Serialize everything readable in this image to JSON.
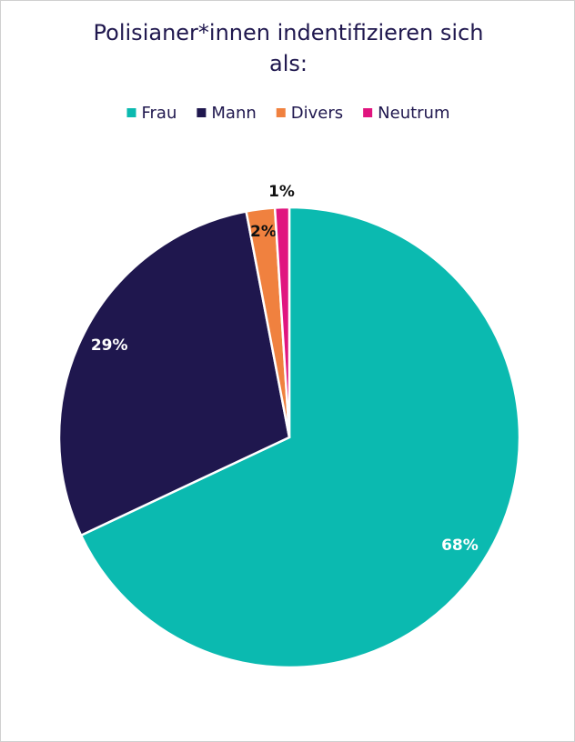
{
  "chart_data": {
    "type": "pie",
    "title": "Polisianer*innen indentifizieren sich als:",
    "categories": [
      "Frau",
      "Mann",
      "Divers",
      "Neutrum"
    ],
    "values": [
      68,
      29,
      2,
      1
    ],
    "value_labels": [
      "68%",
      "29%",
      "2%",
      "1%"
    ],
    "colors": [
      "#0bbab0",
      "#1f174e",
      "#f0813f",
      "#e0157f"
    ],
    "legend": "top"
  }
}
